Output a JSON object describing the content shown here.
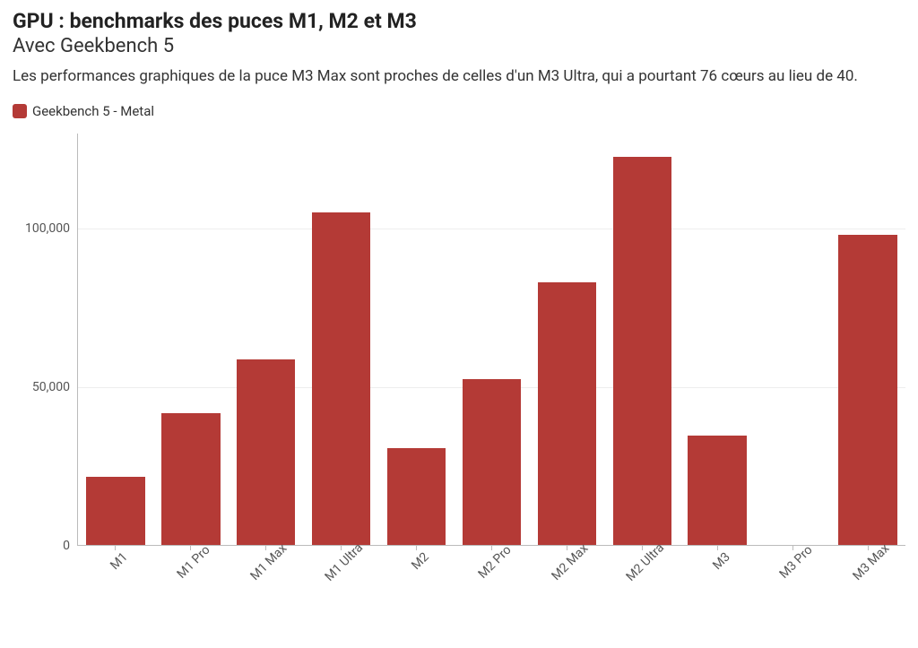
{
  "header": {
    "title": "GPU : benchmarks des puces M1, M2 et M3",
    "subtitle": "Avec Geekbench 5",
    "description": "Les performances graphiques de la puce M3 Max sont proches de celles d'un M3 Ultra, qui a pourtant 76 cœurs au lieu de 40."
  },
  "legend": {
    "label": "Geekbench 5 - Metal",
    "color": "#b43a36"
  },
  "chart": {
    "type": "bar",
    "categories": [
      "M1",
      "M1 Pro",
      "M1 Max",
      "M1 Ultra",
      "M2",
      "M2 Pro",
      "M2 Max",
      "M2 Ultra",
      "M3",
      "M3 Pro",
      "M3 Max"
    ],
    "values": [
      21500,
      41500,
      58500,
      105000,
      30500,
      52500,
      83000,
      122500,
      34500,
      0,
      98000
    ],
    "bar_color": "#b43a36",
    "ylim_min": 0,
    "ylim_max": 130000,
    "yticks": [
      0,
      50000,
      100000
    ],
    "ytick_labels": [
      "0",
      "50,000",
      "100,000"
    ],
    "background_color": "#ffffff",
    "grid_color": "#eeeeee",
    "axis_color": "#bbbbbb",
    "bar_width": 0.78,
    "label_fontsize": 14,
    "label_color": "#555555"
  }
}
